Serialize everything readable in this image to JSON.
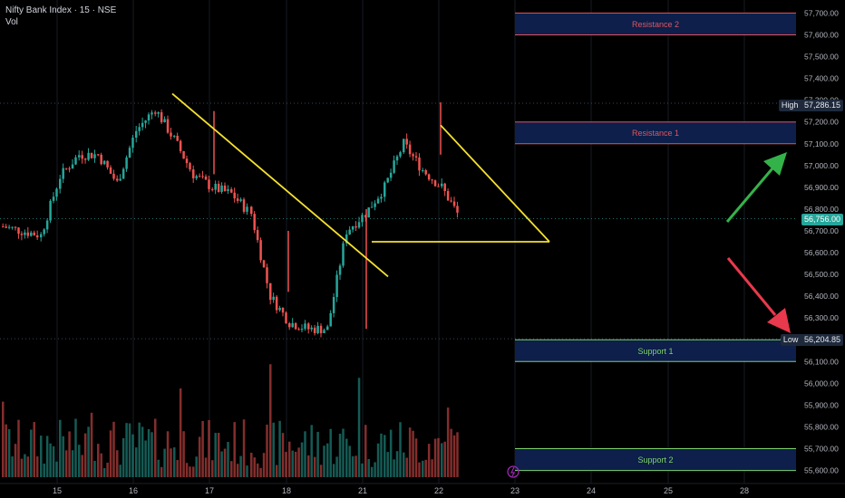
{
  "header": {
    "title": "Nifty Bank Index · 15 · NSE",
    "vol_label": "Vol"
  },
  "colors": {
    "up": "#26a69a",
    "down": "#ef5350",
    "zone_bg": "#0d1f4a",
    "resistance": "#e05561",
    "support": "#7ed36a",
    "trend": "#f5e12f",
    "arrow_up": "#34b24a",
    "arrow_down": "#e8394d"
  },
  "zones": [
    {
      "label": "Resistance 2",
      "top": 57700,
      "bottom": 57600,
      "kind": "resistance"
    },
    {
      "label": "Resistance 1",
      "top": 57200,
      "bottom": 57100,
      "kind": "resistance"
    },
    {
      "label": "Support 1",
      "top": 56200,
      "bottom": 56100,
      "kind": "support"
    },
    {
      "label": "Support 2",
      "top": 55700,
      "bottom": 55600,
      "kind": "support"
    }
  ],
  "markers": {
    "high": {
      "label": "High",
      "value": "57,286.15"
    },
    "low": {
      "label": "Low",
      "value": "56,204.85"
    },
    "current": {
      "value": "56,756.00"
    }
  },
  "price_axis": [
    "57,700.00",
    "57,600.00",
    "57,500.00",
    "57,400.00",
    "57,300.00",
    "57,200.00",
    "57,100.00",
    "57,000.00",
    "56,900.00",
    "56,800.00",
    "56,700.00",
    "56,600.00",
    "56,500.00",
    "56,400.00",
    "56,300.00",
    "56,200.00",
    "56,100.00",
    "56,000.00",
    "55,900.00",
    "55,800.00",
    "55,700.00",
    "55,600.00"
  ],
  "time_axis": [
    "15",
    "16",
    "17",
    "18",
    "21",
    "22",
    "23",
    "24",
    "25",
    "28"
  ],
  "chart_data": {
    "type": "candlestick",
    "y_range": [
      55565,
      57735
    ],
    "high": 57286.15,
    "low": 56204.85,
    "last": 56756.0,
    "days": [
      "15",
      "16",
      "17",
      "18",
      "21",
      "22",
      "23",
      "24",
      "25",
      "28"
    ],
    "path": [
      [
        "15",
        56720
      ],
      [
        "15",
        56680
      ],
      [
        "15",
        56950
      ],
      [
        "15",
        57050
      ],
      [
        "16",
        57050
      ],
      [
        "16",
        56920
      ],
      [
        "16",
        57160
      ],
      [
        "16",
        57260
      ],
      [
        "17",
        57120
      ],
      [
        "17",
        56960
      ],
      [
        "17",
        56900
      ],
      [
        "17",
        56870
      ],
      [
        "18",
        56780
      ],
      [
        "18",
        56400
      ],
      [
        "18",
        56280
      ],
      [
        "18",
        56250
      ],
      [
        "21",
        56250
      ],
      [
        "21",
        56700
      ],
      [
        "21",
        56780
      ],
      [
        "21",
        56900
      ],
      [
        "22",
        57100
      ],
      [
        "22",
        56980
      ],
      [
        "22",
        56900
      ],
      [
        "22",
        56756
      ]
    ],
    "trendlines": [
      {
        "from": [
          "16",
          57330
        ],
        "to": [
          "21",
          56490
        ]
      },
      {
        "from": [
          "22",
          57185
        ],
        "to": [
          "23",
          56650
        ]
      },
      {
        "from": [
          "21",
          56650
        ],
        "to": [
          "23",
          56650
        ]
      }
    ]
  }
}
